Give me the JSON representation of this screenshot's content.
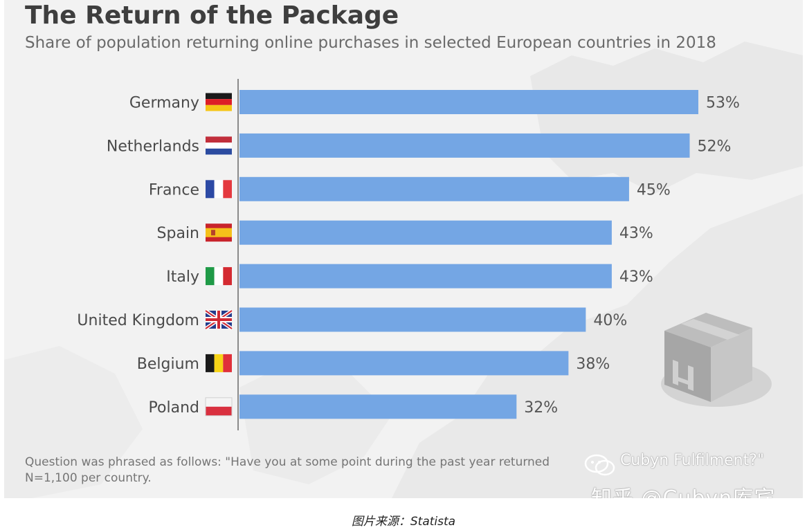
{
  "chart_data": {
    "type": "bar",
    "orientation": "horizontal",
    "title": "The Return of the Package",
    "subtitle": "Share of population returning online purchases in selected European countries in 2018",
    "categories": [
      "Germany",
      "Netherlands",
      "France",
      "Spain",
      "Italy",
      "United Kingdom",
      "Belgium",
      "Poland"
    ],
    "values": [
      53,
      52,
      45,
      43,
      43,
      40,
      38,
      32
    ],
    "value_labels": [
      "53%",
      "52%",
      "45%",
      "43%",
      "43%",
      "40%",
      "38%",
      "32%"
    ],
    "flags": [
      "germany-flag-icon",
      "netherlands-flag-icon",
      "france-flag-icon",
      "spain-flag-icon",
      "italy-flag-icon",
      "united-kingdom-flag-icon",
      "belgium-flag-icon",
      "poland-flag-icon"
    ],
    "bar_color": "#74a6e4",
    "xlim": [
      0,
      60
    ],
    "grid": false
  },
  "footer": {
    "note_line1": "Question was phrased as follows: \"Have you at some point during the past year returned",
    "note_line2": "N=1,100 per country."
  },
  "watermark": {
    "small": "Cubyn Fulfilment?\"",
    "big": "知乎 @Cubyn库宾"
  },
  "caption": "图片来源：Statista",
  "decor": {
    "box_icon": "cardboard-box-icon",
    "background": "europe-map"
  }
}
